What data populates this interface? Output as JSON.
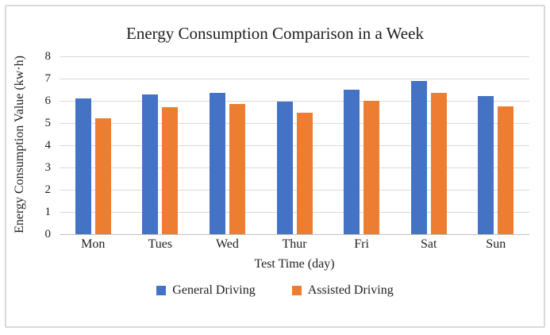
{
  "chart_data": {
    "type": "bar",
    "title": "Energy Consumption Comparison in a Week",
    "xlabel": "Test Time (day)",
    "ylabel": "Energy Consumption Value (kw·h)",
    "categories": [
      "Mon",
      "Tues",
      "Wed",
      "Thur",
      "Fri",
      "Sat",
      "Sun"
    ],
    "series": [
      {
        "name": "General Driving",
        "color": "#4472C4",
        "values": [
          6.1,
          6.3,
          6.35,
          5.95,
          6.5,
          6.9,
          6.2
        ]
      },
      {
        "name": "Assisted Driving",
        "color": "#ED7D31",
        "values": [
          5.2,
          5.7,
          5.85,
          5.45,
          6.0,
          6.35,
          5.75
        ]
      }
    ],
    "ylim": [
      0,
      8
    ],
    "yticks": [
      0,
      1,
      2,
      3,
      4,
      5,
      6,
      7,
      8
    ],
    "grid": true,
    "legend_position": "bottom"
  },
  "style": {
    "gridline_color": "#D9D9D9",
    "axis_line_color": "#BFBFBF",
    "text_color": "#1F1F1F",
    "frame_border_color": "#DADADA",
    "background": "#FFFFFF"
  }
}
